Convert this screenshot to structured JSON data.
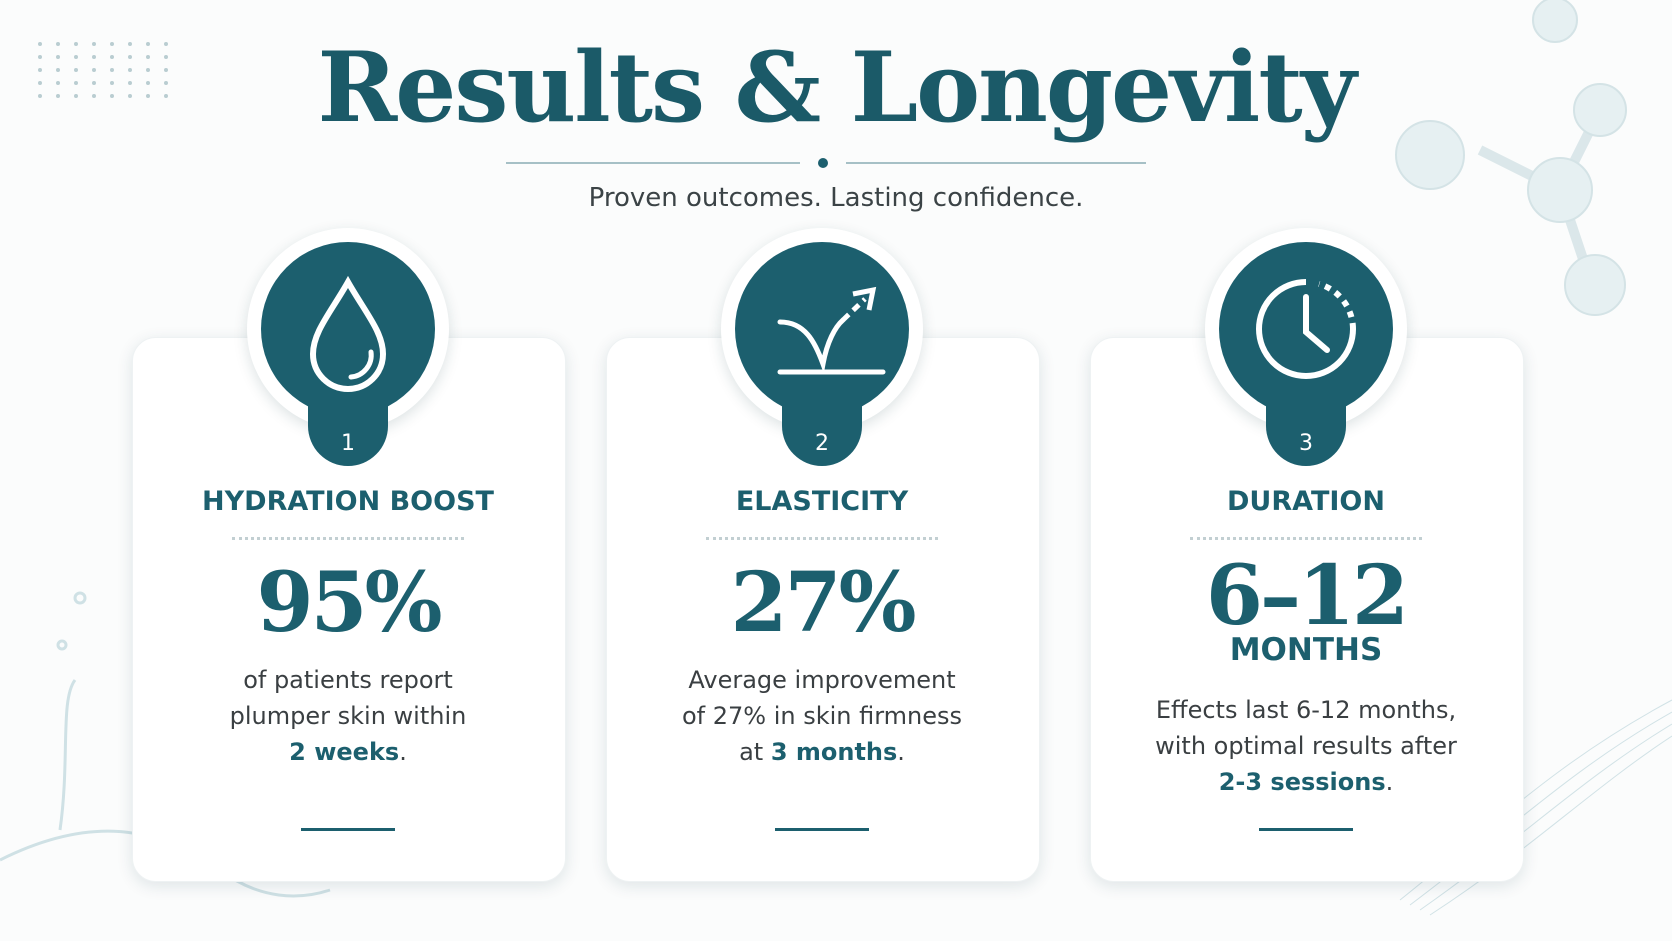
{
  "header": {
    "title": "Results & Longevity",
    "subtitle": "Proven outcomes. Lasting confidence."
  },
  "cards": [
    {
      "number": "1",
      "title": "HYDRATION BOOST",
      "stat": "95%",
      "description": [
        {
          "text": "of patients report"
        },
        {
          "text": "plumper skin within"
        },
        {
          "strong": "2 weeks",
          "after": "."
        }
      ]
    },
    {
      "number": "2",
      "title": "ELASTICITY",
      "stat": "27%",
      "description": [
        {
          "text": "Average improvement"
        },
        {
          "text": "of 27% in skin firmness"
        },
        {
          "text": "at ",
          "strong": "3 months",
          "after": "."
        }
      ]
    },
    {
      "number": "3",
      "title": "DURATION",
      "stat": "6–12",
      "unit": "MONTHS",
      "description": [
        {
          "text": "Effects last 6-12 months,"
        },
        {
          "text": "with optimal results after"
        },
        {
          "strong": "2-3 sessions",
          "after": "."
        }
      ]
    }
  ]
}
